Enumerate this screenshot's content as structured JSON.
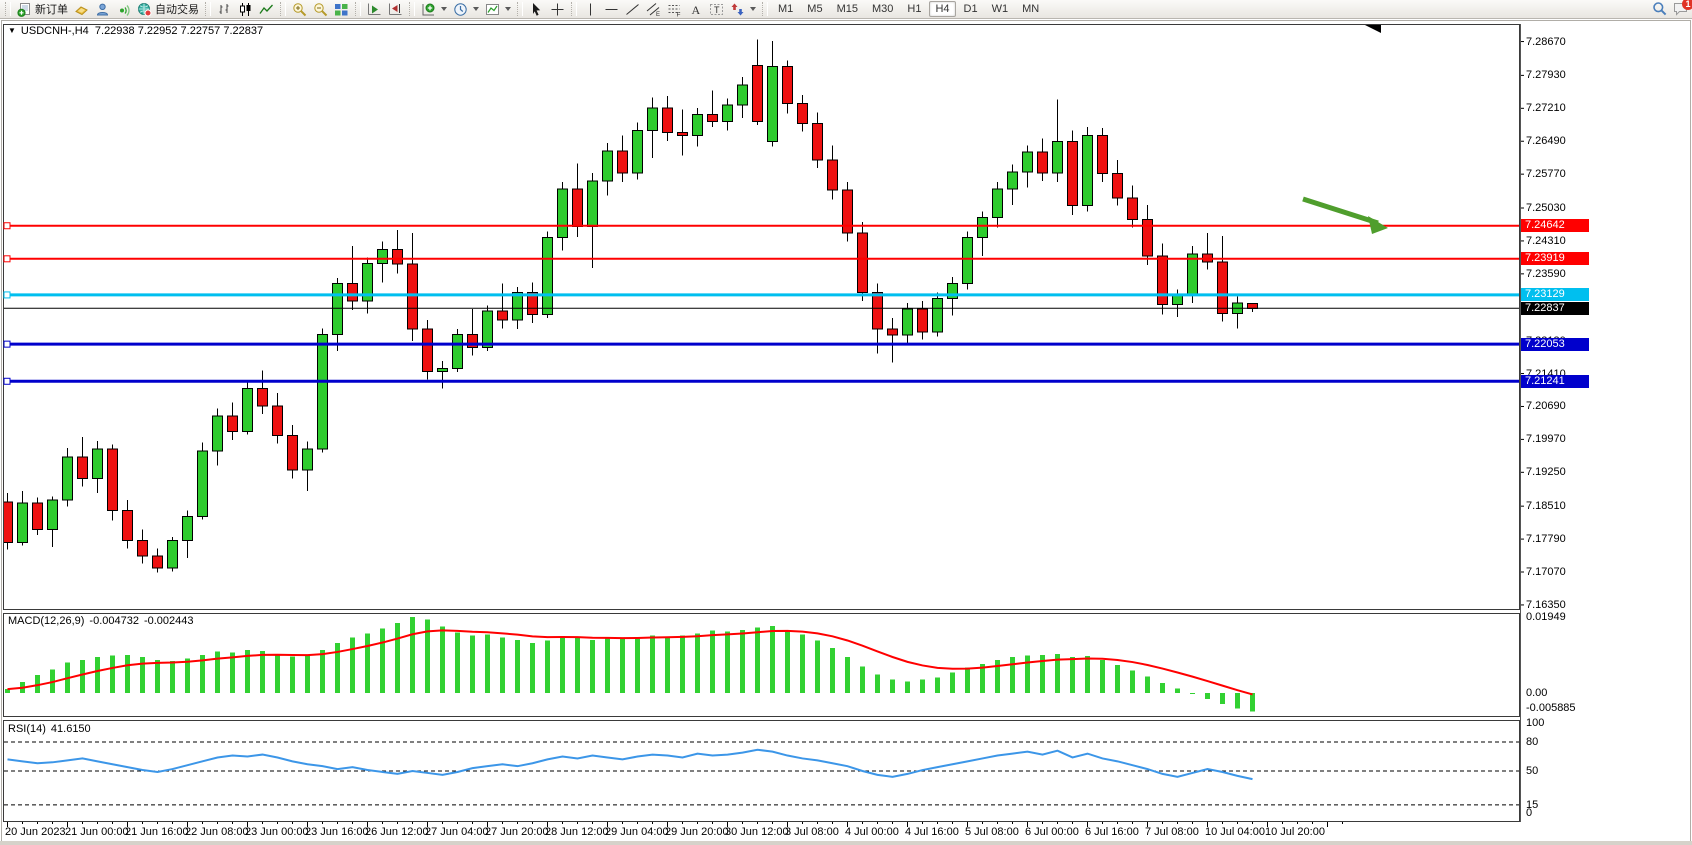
{
  "toolbar": {
    "new_order_label": "新订单",
    "autotrading_label": "自动交易",
    "timeframes": [
      "M1",
      "M5",
      "M15",
      "M30",
      "H1",
      "H4",
      "D1",
      "W1",
      "MN"
    ],
    "active_timeframe": "H4",
    "chat_badge": "1"
  },
  "chart": {
    "title": "USDCNH-,H4",
    "quotes": "7.22938 7.22952 7.22757 7.22837",
    "colors": {
      "bull": "#2ecc2e",
      "bear": "#ee1111",
      "wick": "#000000",
      "level_red": "#ff0000",
      "level_cyan": "#00bfef",
      "level_blue": "#0000cc",
      "current_line": "#000000",
      "arrow": "#4f9e2d"
    },
    "axis_ticks_main": [
      "7.28670",
      "7.27930",
      "7.27210",
      "7.26490",
      "7.25770",
      "7.25030",
      "7.24310",
      "7.23590",
      "7.22130",
      "7.21410",
      "7.20690",
      "7.19970",
      "7.19250",
      "7.18510",
      "7.17790",
      "7.17070",
      "7.16350"
    ],
    "levels": [
      {
        "price": 7.24642,
        "label": "7.24642",
        "color": "#ff0000",
        "width": 2
      },
      {
        "price": 7.23919,
        "label": "7.23919",
        "color": "#ff0000",
        "width": 2
      },
      {
        "price": 7.23129,
        "label": "7.23129",
        "color": "#00bfef",
        "width": 3
      },
      {
        "price": 7.22053,
        "label": "7.22053",
        "color": "#0000cc",
        "width": 3
      },
      {
        "price": 7.21241,
        "label": "7.21241",
        "color": "#0000cc",
        "width": 3
      }
    ],
    "current_price": {
      "price": 7.22837,
      "label": "7.22837",
      "color": "#000000"
    },
    "time_labels": [
      "20 Jun 2023",
      "21 Jun 00:00",
      "21 Jun 16:00",
      "22 Jun 08:00",
      "23 Jun 00:00",
      "23 Jun 16:00",
      "26 Jun 12:00",
      "27 Jun 04:00",
      "27 Jun 20:00",
      "28 Jun 12:00",
      "29 Jun 04:00",
      "29 Jun 20:00",
      "30 Jun 12:00",
      "3 Jul 08:00",
      "4 Jul 00:00",
      "4 Jul 16:00",
      "5 Jul 08:00",
      "6 Jul 00:00",
      "6 Jul 16:00",
      "7 Jul 08:00",
      "10 Jul 04:00",
      "10 Jul 20:00"
    ],
    "candles": [
      [
        7.186,
        7.188,
        7.1756,
        7.1772
      ],
      [
        7.1772,
        7.1884,
        7.1765,
        7.1858
      ],
      [
        7.1858,
        7.187,
        7.1788,
        7.18
      ],
      [
        7.18,
        7.1872,
        7.1762,
        7.1864
      ],
      [
        7.1864,
        7.1978,
        7.185,
        7.1958
      ],
      [
        7.1958,
        7.2002,
        7.1894,
        7.1912
      ],
      [
        7.1912,
        7.1994,
        7.188,
        7.1976
      ],
      [
        7.1976,
        7.1986,
        7.182,
        7.1842
      ],
      [
        7.1842,
        7.1864,
        7.1758,
        7.1776
      ],
      [
        7.1776,
        7.18,
        7.1726,
        7.1742
      ],
      [
        7.1742,
        7.1758,
        7.1706,
        7.1716
      ],
      [
        7.1716,
        7.1784,
        7.1708,
        7.1776
      ],
      [
        7.1776,
        7.1842,
        7.1738,
        7.1828
      ],
      [
        7.1828,
        7.199,
        7.1822,
        7.1972
      ],
      [
        7.1972,
        7.2065,
        7.194,
        7.2048
      ],
      [
        7.2048,
        7.2078,
        7.1996,
        7.2014
      ],
      [
        7.2014,
        7.2125,
        7.2008,
        7.2108
      ],
      [
        7.2108,
        7.2148,
        7.2052,
        7.207
      ],
      [
        7.207,
        7.2098,
        7.1988,
        7.2006
      ],
      [
        7.2006,
        7.2028,
        7.1912,
        7.193
      ],
      [
        7.193,
        7.1992,
        7.1884,
        7.1976
      ],
      [
        7.1976,
        7.224,
        7.1968,
        7.2226
      ],
      [
        7.2226,
        7.235,
        7.219,
        7.2338
      ],
      [
        7.2338,
        7.242,
        7.228,
        7.23
      ],
      [
        7.23,
        7.2395,
        7.2272,
        7.2382
      ],
      [
        7.2382,
        7.243,
        7.234,
        7.2412
      ],
      [
        7.2412,
        7.2455,
        7.236,
        7.238
      ],
      [
        7.238,
        7.2448,
        7.2212,
        7.2238
      ],
      [
        7.2238,
        7.2258,
        7.2128,
        7.2146
      ],
      [
        7.2146,
        7.2168,
        7.2108,
        7.2152
      ],
      [
        7.2152,
        7.2238,
        7.2144,
        7.2226
      ],
      [
        7.2226,
        7.2282,
        7.218,
        7.2198
      ],
      [
        7.2198,
        7.229,
        7.219,
        7.2278
      ],
      [
        7.2278,
        7.2338,
        7.224,
        7.2258
      ],
      [
        7.2258,
        7.233,
        7.2238,
        7.2318
      ],
      [
        7.2318,
        7.234,
        7.2252,
        7.227
      ],
      [
        7.227,
        7.2452,
        7.2262,
        7.2438
      ],
      [
        7.2438,
        7.256,
        7.241,
        7.2545
      ],
      [
        7.2545,
        7.26,
        7.244,
        7.2462
      ],
      [
        7.2462,
        7.258,
        7.2372,
        7.2562
      ],
      [
        7.2562,
        7.2645,
        7.253,
        7.2628
      ],
      [
        7.2628,
        7.2662,
        7.256,
        7.258
      ],
      [
        7.258,
        7.269,
        7.2565,
        7.2672
      ],
      [
        7.2672,
        7.2745,
        7.2612,
        7.2722
      ],
      [
        7.2722,
        7.2748,
        7.265,
        7.2668
      ],
      [
        7.2668,
        7.2718,
        7.2618,
        7.2662
      ],
      [
        7.2662,
        7.2722,
        7.2638,
        7.2708
      ],
      [
        7.2708,
        7.276,
        7.268,
        7.2692
      ],
      [
        7.2692,
        7.2742,
        7.2672,
        7.2728
      ],
      [
        7.2728,
        7.279,
        7.27,
        7.2772
      ],
      [
        7.2815,
        7.2872,
        7.2685,
        7.2692
      ],
      [
        7.2648,
        7.2868,
        7.2638,
        7.2812
      ],
      [
        7.2812,
        7.2825,
        7.271,
        7.2732
      ],
      [
        7.2732,
        7.275,
        7.267,
        7.2688
      ],
      [
        7.2688,
        7.2712,
        7.259,
        7.2608
      ],
      [
        7.2608,
        7.264,
        7.2522,
        7.2542
      ],
      [
        7.2542,
        7.256,
        7.243,
        7.2448
      ],
      [
        7.2448,
        7.2472,
        7.23,
        7.2318
      ],
      [
        7.2318,
        7.2338,
        7.2185,
        7.2238
      ],
      [
        7.2238,
        7.2262,
        7.2165,
        7.2225
      ],
      [
        7.2225,
        7.2295,
        7.2205,
        7.2282
      ],
      [
        7.2282,
        7.23,
        7.2215,
        7.2232
      ],
      [
        7.2232,
        7.2318,
        7.2222,
        7.2305
      ],
      [
        7.2305,
        7.2352,
        7.2268,
        7.2338
      ],
      [
        7.2338,
        7.2452,
        7.2325,
        7.2438
      ],
      [
        7.2438,
        7.2495,
        7.2398,
        7.2482
      ],
      [
        7.2482,
        7.256,
        7.246,
        7.2545
      ],
      [
        7.2545,
        7.2598,
        7.251,
        7.2582
      ],
      [
        7.2582,
        7.264,
        7.2548,
        7.2625
      ],
      [
        7.2625,
        7.2655,
        7.2562,
        7.258
      ],
      [
        7.258,
        7.274,
        7.256,
        7.2648
      ],
      [
        7.2648,
        7.2672,
        7.2488,
        7.2508
      ],
      [
        7.2508,
        7.268,
        7.2495,
        7.2662
      ],
      [
        7.2662,
        7.2678,
        7.256,
        7.2578
      ],
      [
        7.2578,
        7.2608,
        7.2508,
        7.2525
      ],
      [
        7.2525,
        7.2552,
        7.246,
        7.2478
      ],
      [
        7.2478,
        7.251,
        7.2378,
        7.2398
      ],
      [
        7.2398,
        7.2425,
        7.227,
        7.2292
      ],
      [
        7.2292,
        7.2325,
        7.2265,
        7.2312
      ],
      [
        7.2312,
        7.242,
        7.2295,
        7.2402
      ],
      [
        7.2402,
        7.2448,
        7.2368,
        7.2385
      ],
      [
        7.2385,
        7.2442,
        7.2255,
        7.2272
      ],
      [
        7.2272,
        7.231,
        7.224,
        7.2295
      ],
      [
        7.22938,
        7.22952,
        7.22757,
        7.22837
      ]
    ]
  },
  "macd": {
    "label": "MACD(12,26,9)",
    "value": "-0.004732",
    "signal": "-0.002443",
    "axis": [
      "0.01949",
      "0.00",
      "-0.005885"
    ],
    "color_hist": "#32d132",
    "color_signal": "#ff0000",
    "values": [
      0.001,
      0.0028,
      0.0046,
      0.006,
      0.0078,
      0.0085,
      0.0092,
      0.0096,
      0.0098,
      0.0092,
      0.0085,
      0.0082,
      0.0088,
      0.0098,
      0.0106,
      0.0104,
      0.011,
      0.0108,
      0.01,
      0.0094,
      0.0096,
      0.011,
      0.0128,
      0.0142,
      0.0152,
      0.0165,
      0.018,
      0.0195,
      0.0188,
      0.017,
      0.0155,
      0.0148,
      0.015,
      0.0142,
      0.0136,
      0.0128,
      0.0135,
      0.0145,
      0.0142,
      0.0136,
      0.014,
      0.0138,
      0.0142,
      0.0148,
      0.0145,
      0.0148,
      0.0152,
      0.016,
      0.0158,
      0.0162,
      0.0168,
      0.0172,
      0.016,
      0.015,
      0.0135,
      0.0115,
      0.0092,
      0.0068,
      0.0048,
      0.0035,
      0.003,
      0.0034,
      0.004,
      0.0052,
      0.0065,
      0.0075,
      0.0085,
      0.0092,
      0.0096,
      0.0098,
      0.01,
      0.0092,
      0.0095,
      0.0085,
      0.0072,
      0.0058,
      0.0042,
      0.0026,
      0.0012,
      0.0,
      -0.0015,
      -0.0028,
      -0.004,
      -0.0047
    ]
  },
  "rsi": {
    "label": "RSI(14)",
    "value": "41.6150",
    "axis": [
      {
        "label": "100",
        "v": 100
      },
      {
        "label": "80",
        "v": 80
      },
      {
        "label": "50",
        "v": 50
      },
      {
        "label": "15",
        "v": 15
      },
      {
        "label": "0",
        "v": 0
      }
    ],
    "dashed_levels": [
      80,
      50,
      15
    ],
    "color_line": "#3c96e8",
    "values": [
      62,
      60,
      58,
      59,
      61,
      63,
      60,
      57,
      54,
      51,
      49,
      52,
      56,
      60,
      64,
      66,
      65,
      67,
      64,
      60,
      57,
      55,
      52,
      54,
      51,
      49,
      47,
      50,
      48,
      46,
      49,
      53,
      55,
      57,
      55,
      58,
      62,
      65,
      63,
      66,
      64,
      62,
      65,
      67,
      66,
      64,
      68,
      66,
      67,
      69,
      72,
      70,
      66,
      63,
      61,
      58,
      55,
      50,
      46,
      44,
      47,
      51,
      54,
      57,
      60,
      63,
      66,
      68,
      70,
      67,
      71,
      64,
      68,
      63,
      60,
      56,
      52,
      47,
      44,
      48,
      52,
      49,
      45,
      41.6
    ]
  },
  "annotation_arrow": {
    "from": [
      1303,
      199
    ],
    "to": [
      1382,
      225
    ],
    "color": "#4f9e2d"
  }
}
